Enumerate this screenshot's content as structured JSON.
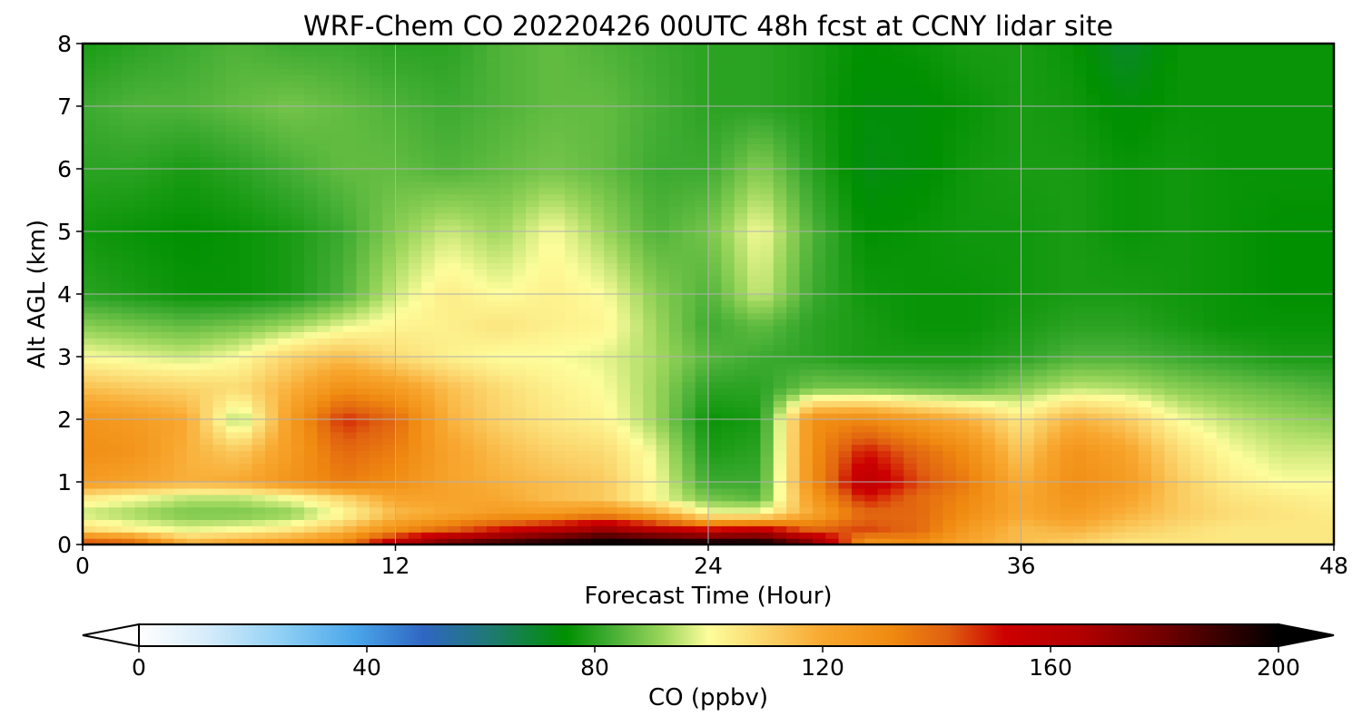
{
  "chart_data": {
    "type": "heatmap",
    "title": "WRF-Chem CO  20220426 00UTC 48h fcst at CCNY lidar site",
    "xlabel": "Forecast Time (Hour)",
    "ylabel": "Alt AGL (km)",
    "xlim": [
      0,
      48
    ],
    "ylim": [
      0,
      8
    ],
    "xticks": [
      0,
      12,
      24,
      36,
      48
    ],
    "yticks": [
      0,
      1,
      2,
      3,
      4,
      5,
      6,
      7,
      8
    ],
    "grid": true,
    "x_grid": [
      0,
      2,
      4,
      6,
      8,
      10,
      12,
      14,
      16,
      18,
      20,
      22,
      24,
      26,
      28,
      30,
      32,
      34,
      36,
      38,
      40,
      42,
      44,
      46,
      48
    ],
    "y_grid": [
      0,
      0.25,
      0.5,
      0.75,
      1,
      1.5,
      2,
      2.5,
      3,
      3.5,
      4,
      5,
      6,
      7,
      8
    ],
    "z": [
      [
        150,
        145,
        120,
        125,
        130,
        135,
        165,
        185,
        195,
        200,
        205,
        205,
        205,
        205,
        180,
        125,
        130,
        120,
        115,
        110,
        105,
        105,
        105,
        105,
        105
      ],
      [
        108,
        102,
        98,
        100,
        105,
        115,
        130,
        140,
        150,
        160,
        170,
        160,
        150,
        155,
        140,
        145,
        140,
        125,
        115,
        118,
        112,
        108,
        105,
        105,
        105
      ],
      [
        95,
        92,
        88,
        88,
        90,
        100,
        115,
        120,
        125,
        125,
        130,
        120,
        100,
        100,
        120,
        140,
        140,
        130,
        120,
        125,
        118,
        112,
        108,
        106,
        104
      ],
      [
        105,
        100,
        95,
        95,
        100,
        110,
        122,
        122,
        120,
        115,
        112,
        100,
        88,
        85,
        125,
        150,
        140,
        132,
        120,
        128,
        122,
        112,
        106,
        104,
        102
      ],
      [
        125,
        122,
        118,
        120,
        128,
        135,
        130,
        122,
        118,
        115,
        112,
        100,
        82,
        82,
        130,
        160,
        145,
        135,
        118,
        130,
        125,
        112,
        104,
        100,
        100
      ],
      [
        130,
        128,
        118,
        112,
        125,
        140,
        135,
        122,
        115,
        110,
        108,
        98,
        78,
        80,
        130,
        150,
        140,
        130,
        112,
        128,
        122,
        108,
        100,
        96,
        96
      ],
      [
        128,
        125,
        120,
        92,
        125,
        148,
        140,
        118,
        110,
        105,
        102,
        92,
        76,
        78,
        130,
        132,
        125,
        118,
        105,
        118,
        112,
        100,
        95,
        92,
        90
      ],
      [
        115,
        112,
        110,
        108,
        118,
        130,
        125,
        115,
        108,
        103,
        100,
        92,
        80,
        80,
        88,
        88,
        86,
        85,
        90,
        95,
        94,
        90,
        88,
        86,
        84
      ],
      [
        100,
        98,
        96,
        100,
        110,
        115,
        108,
        103,
        100,
        100,
        98,
        93,
        85,
        82,
        80,
        78,
        78,
        78,
        80,
        84,
        84,
        82,
        80,
        78,
        78
      ],
      [
        90,
        88,
        86,
        88,
        92,
        98,
        102,
        103,
        106,
        103,
        102,
        92,
        82,
        86,
        80,
        78,
        76,
        76,
        78,
        80,
        80,
        78,
        76,
        76,
        76
      ],
      [
        80,
        78,
        76,
        76,
        78,
        84,
        96,
        104,
        100,
        103,
        100,
        90,
        84,
        96,
        82,
        77,
        76,
        76,
        77,
        78,
        78,
        77,
        76,
        75,
        75
      ],
      [
        77,
        76,
        75,
        76,
        78,
        82,
        90,
        96,
        92,
        100,
        92,
        84,
        88,
        100,
        84,
        75,
        76,
        77,
        77,
        78,
        76,
        77,
        76,
        75,
        75
      ],
      [
        80,
        80,
        78,
        80,
        83,
        86,
        86,
        84,
        86,
        88,
        86,
        82,
        82,
        90,
        80,
        73,
        74,
        77,
        78,
        78,
        76,
        77,
        76,
        76,
        76
      ],
      [
        82,
        84,
        84,
        86,
        88,
        86,
        84,
        82,
        84,
        86,
        86,
        83,
        80,
        80,
        78,
        74,
        74,
        76,
        78,
        77,
        74,
        76,
        76,
        76,
        76
      ],
      [
        78,
        80,
        82,
        84,
        82,
        82,
        80,
        80,
        84,
        86,
        84,
        82,
        80,
        80,
        78,
        75,
        76,
        78,
        78,
        76,
        70,
        76,
        76,
        76,
        76
      ]
    ],
    "colorbar": {
      "label": "CO  (ppbv)",
      "ticks": [
        0,
        40,
        80,
        120,
        160,
        200
      ],
      "range": [
        0,
        200
      ],
      "extend": "both",
      "colormap": [
        [
          0,
          "#ffffff"
        ],
        [
          12,
          "#d6ecfa"
        ],
        [
          25,
          "#8fd0f5"
        ],
        [
          38,
          "#4aa6ea"
        ],
        [
          50,
          "#2f66c2"
        ],
        [
          62,
          "#1e7a70"
        ],
        [
          75,
          "#009000"
        ],
        [
          82,
          "#3caa30"
        ],
        [
          92,
          "#9cd65c"
        ],
        [
          100,
          "#fdfd9b"
        ],
        [
          110,
          "#fbd36a"
        ],
        [
          120,
          "#f8a830"
        ],
        [
          132,
          "#f08a10"
        ],
        [
          142,
          "#e06010"
        ],
        [
          152,
          "#cc0000"
        ],
        [
          165,
          "#b30000"
        ],
        [
          180,
          "#700000"
        ],
        [
          200,
          "#000000"
        ]
      ]
    }
  }
}
